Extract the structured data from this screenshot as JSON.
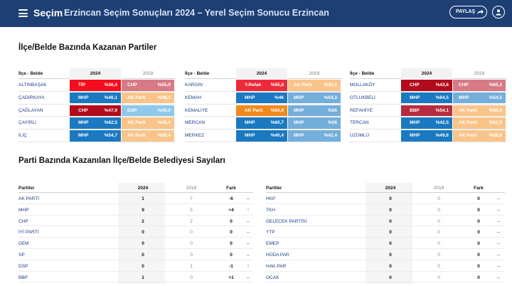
{
  "header": {
    "brand": "Seçim",
    "title": "Erzincan Seçim Sonuçları 2024 – Yerel Seçim Sonucu Erzincan",
    "share_label": "PAYLAŞ"
  },
  "section1": {
    "title": "İlçe/Belde Bazında Kazanan Partiler",
    "col_location": "İlçe - Belde",
    "col_2024": "2024",
    "col_2019": "2019",
    "groups": [
      {
        "rows": [
          {
            "loc": "ALTINBAŞAK",
            "p24": "TİP",
            "v24": "%36,4",
            "c24": "#f30d1d",
            "p19": "CHP",
            "v19": "%55,0",
            "c19": "#d77a86"
          },
          {
            "loc": "ÇADIRKAYA",
            "p24": "MHP",
            "v24": "%46,1",
            "c24": "#1a79c0",
            "p19": "AK Parti",
            "v19": "%49,1",
            "c19": "#f9c48a"
          },
          {
            "loc": "ÇAĞLAYAN",
            "p24": "CHP",
            "v24": "%47,9",
            "c24": "#b20b1b",
            "p19": "DSP",
            "v19": "%49,0",
            "c19": "#8ec8ea"
          },
          {
            "loc": "ÇAYIRLI",
            "p24": "MHP",
            "v24": "%62,5",
            "c24": "#1a79c0",
            "p19": "AK Parti",
            "v19": "%55,6",
            "c19": "#f9c48a"
          },
          {
            "loc": "İLİÇ",
            "p24": "MHP",
            "v24": "%54,7",
            "c24": "#1a79c0",
            "p19": "AK Parti",
            "v19": "%55,4",
            "c19": "#f9c48a"
          }
        ]
      },
      {
        "rows": [
          {
            "loc": "KARGIN",
            "p24": "Y.Refah",
            "v24": "%55,8",
            "c24": "#ed2a3a",
            "p19": "AK Parti",
            "v19": "%34,3",
            "c19": "#f9c48a"
          },
          {
            "loc": "KEMAH",
            "p24": "MHP",
            "v24": "%46",
            "c24": "#1a79c0",
            "p19": "MHP",
            "v19": "%54,3",
            "c19": "#74aedb"
          },
          {
            "loc": "KEMALİYE",
            "p24": "AK Parti",
            "v24": "%50,9",
            "c24": "#f18a1e",
            "p19": "MHP",
            "v19": "%56",
            "c19": "#74aedb"
          },
          {
            "loc": "MERCAN",
            "p24": "MHP",
            "v24": "%60,7",
            "c24": "#1a79c0",
            "p19": "MHP",
            "v19": "%56",
            "c19": "#74aedb"
          },
          {
            "loc": "MERKEZ",
            "p24": "MHP",
            "v24": "%40,4",
            "c24": "#1a79c0",
            "p19": "MHP",
            "v19": "%42,4",
            "c19": "#74aedb"
          }
        ]
      },
      {
        "rows": [
          {
            "loc": "MOLLAKÖY",
            "p24": "CHP",
            "v24": "%43,6",
            "c24": "#b20b1b",
            "p19": "CHP",
            "v19": "%65,3",
            "c19": "#d77a86"
          },
          {
            "loc": "OTLUKBELİ",
            "p24": "MHP",
            "v24": "%64,5",
            "c24": "#1a79c0",
            "p19": "MHP",
            "v19": "%54,5",
            "c19": "#74aedb"
          },
          {
            "loc": "REFAHİYE",
            "p24": "BBP",
            "v24": "%54,1",
            "c24": "#b72d3e",
            "p19": "AK Parti",
            "v19": "%50,9",
            "c19": "#f9c48a"
          },
          {
            "loc": "TERCAN",
            "p24": "MHP",
            "v24": "%42,5",
            "c24": "#1a79c0",
            "p19": "AK Parti",
            "v19": "%51,9",
            "c19": "#f9c48a"
          },
          {
            "loc": "ÜZÜMLÜ",
            "p24": "MHP",
            "v24": "%49,6",
            "c24": "#1a79c0",
            "p19": "AK Parti",
            "v19": "%55,8",
            "c19": "#f9c48a"
          }
        ]
      }
    ]
  },
  "section2": {
    "title": "Parti Bazında Kazanılan İlçe/Belde Belediyesi Sayıları",
    "col_party": "Partiler",
    "col_2024": "2024",
    "col_2019": "2019",
    "col_diff": "Fark",
    "left_rows": [
      {
        "name": "AK PARTİ",
        "v24": "1",
        "v19": "7",
        "diff": "-6",
        "trend": "_"
      },
      {
        "name": "MHP",
        "v24": "9",
        "v19": "5",
        "diff": "+4",
        "trend": "↑"
      },
      {
        "name": "CHP",
        "v24": "2",
        "v19": "2",
        "diff": "0",
        "trend": "_"
      },
      {
        "name": "İYİ PARTİ",
        "v24": "0",
        "v19": "0",
        "diff": "0",
        "trend": "_"
      },
      {
        "name": "DEM",
        "v24": "0",
        "v19": "0",
        "diff": "0",
        "trend": "_"
      },
      {
        "name": "SP",
        "v24": "0",
        "v19": "0",
        "diff": "0",
        "trend": "_"
      },
      {
        "name": "DSP",
        "v24": "0",
        "v19": "1",
        "diff": "-1",
        "trend": "↓"
      },
      {
        "name": "BBP",
        "v24": "1",
        "v19": "0",
        "diff": "+1",
        "trend": "_"
      }
    ],
    "right_rows": [
      {
        "name": "HKP",
        "v24": "0",
        "v19": "0",
        "diff": "0",
        "trend": "_"
      },
      {
        "name": "TKH",
        "v24": "0",
        "v19": "0",
        "diff": "0",
        "trend": "_"
      },
      {
        "name": "GELECEK PARTİSİ",
        "v24": "0",
        "v19": "0",
        "diff": "0",
        "trend": "_"
      },
      {
        "name": "YTP",
        "v24": "0",
        "v19": "0",
        "diff": "0",
        "trend": "_"
      },
      {
        "name": "EMEP",
        "v24": "0",
        "v19": "0",
        "diff": "0",
        "trend": "_"
      },
      {
        "name": "HÜDA PAR",
        "v24": "0",
        "v19": "0",
        "diff": "0",
        "trend": "_"
      },
      {
        "name": "HAK-PAR",
        "v24": "0",
        "v19": "0",
        "diff": "0",
        "trend": "_"
      },
      {
        "name": "OCAK",
        "v24": "0",
        "v19": "0",
        "diff": "0",
        "trend": "_"
      }
    ],
    "trend_colors": {
      "up": "#2aa84a",
      "down": "#d0202e",
      "flat": "#555555"
    }
  }
}
